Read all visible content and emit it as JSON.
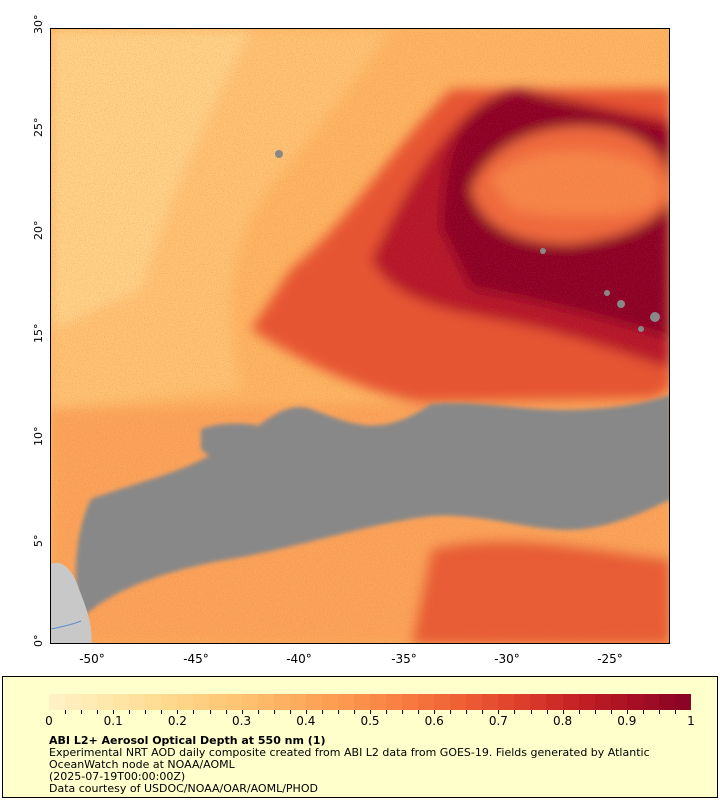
{
  "map": {
    "y_ticks": [
      "30°",
      "25°",
      "20°",
      "15°",
      "10°",
      "5°",
      "0°"
    ],
    "x_ticks": [
      "-50°",
      "-45°",
      "-40°",
      "-35°",
      "-30°",
      "-25°"
    ],
    "lat_range": [
      0,
      30
    ],
    "lon_range": [
      -52,
      -22
    ],
    "no_data_color": "#888888",
    "land_color": "#c8c8c8"
  },
  "legend": {
    "title": "ABI L2+ Aerosol Optical Depth at 550 nm (1)",
    "line1": "Experimental NRT AOD daily composite created from ABI L2 data from GOES-19. Fields generated by Atlantic",
    "line2": "OceanWatch node at NOAA/AOML",
    "line3": "(2025-07-19T00:00:00Z)",
    "line4": "Data courtesy of USDOC/NOAA/OAR/AOML/PHOD",
    "ticks": [
      "0",
      "0.1",
      "0.2",
      "0.3",
      "0.4",
      "0.5",
      "0.6",
      "0.7",
      "0.8",
      "0.9",
      "1"
    ],
    "colors": [
      "#fff1c4",
      "#ffe6a8",
      "#fed98c",
      "#fec776",
      "#fdb161",
      "#fc9a50",
      "#f97f42",
      "#f06236",
      "#e0442c",
      "#c82525",
      "#ab1123",
      "#8b0325"
    ]
  }
}
